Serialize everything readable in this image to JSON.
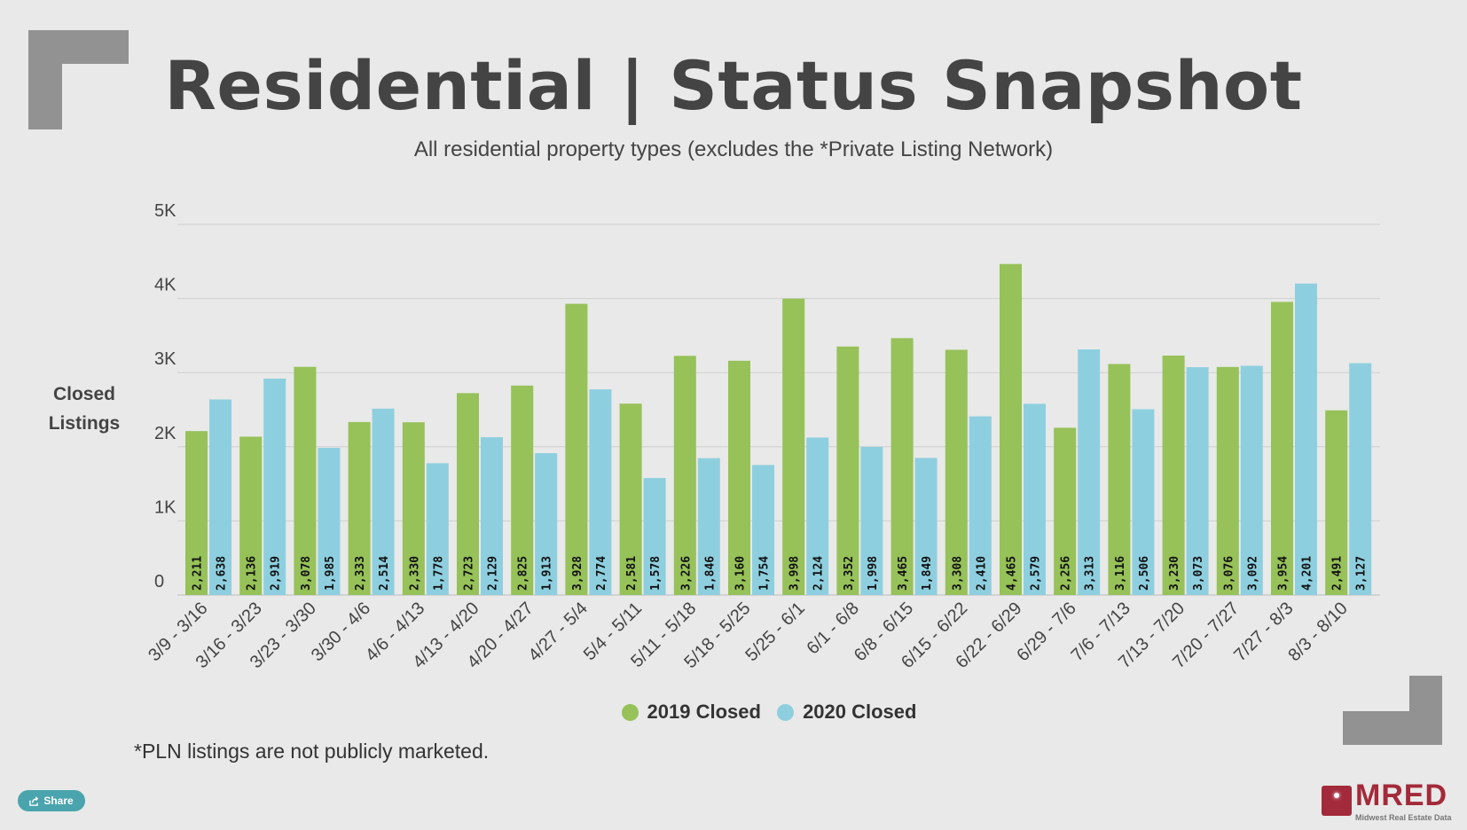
{
  "header": {
    "title": "Residential | Status Snapshot",
    "subtitle": "All residential property types (excludes the *Private Listing Network)"
  },
  "footnote": "*PLN listings are not publicly marketed.",
  "share_button": {
    "label": "Share",
    "icon": "share-icon"
  },
  "logo": {
    "text": "MRED",
    "tagline": "Midwest Real Estate Data"
  },
  "colors": {
    "2019": "#97c159",
    "2020": "#8ecfdf",
    "accent_bracket": "#929292",
    "logo": "#a32a3a"
  },
  "chart_data": {
    "type": "bar",
    "ylabel": "Closed Listings",
    "ylim": [
      0,
      5000
    ],
    "yticks": [
      "0",
      "1K",
      "2K",
      "3K",
      "4K",
      "5K"
    ],
    "grid": true,
    "legend_position": "bottom",
    "categories": [
      "3/9 - 3/16",
      "3/16 - 3/23",
      "3/23 - 3/30",
      "3/30 - 4/6",
      "4/6 - 4/13",
      "4/13 - 4/20",
      "4/20 - 4/27",
      "4/27 - 5/4",
      "5/4 - 5/11",
      "5/11 - 5/18",
      "5/18 - 5/25",
      "5/25 - 6/1",
      "6/1 - 6/8",
      "6/8 - 6/15",
      "6/15 - 6/22",
      "6/22 - 6/29",
      "6/29 - 7/6",
      "7/6 - 7/13",
      "7/13 - 7/20",
      "7/20 - 7/27",
      "7/27 - 8/3",
      "8/3 - 8/10"
    ],
    "series": [
      {
        "name": "2019 Closed",
        "color": "#97c159",
        "values": [
          2211,
          2136,
          3078,
          2333,
          2330,
          2723,
          2825,
          3928,
          2581,
          3226,
          3160,
          3998,
          3352,
          3465,
          3308,
          4465,
          2256,
          3116,
          3230,
          3076,
          3954,
          2491
        ]
      },
      {
        "name": "2020 Closed",
        "color": "#8ecfdf",
        "values": [
          2638,
          2919,
          1985,
          2514,
          1778,
          2129,
          1913,
          2774,
          1578,
          1846,
          1754,
          2124,
          1998,
          1849,
          2410,
          2579,
          3313,
          2506,
          3073,
          3092,
          4201,
          3127
        ]
      }
    ]
  }
}
